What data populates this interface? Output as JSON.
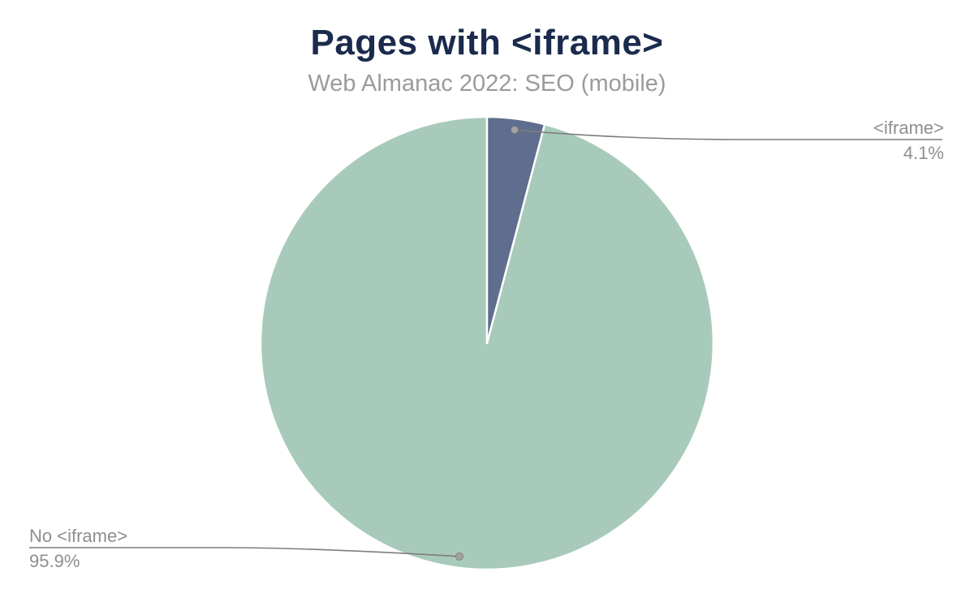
{
  "chart": {
    "title": "Pages with <iframe>",
    "subtitle": "Web Almanac 2022: SEO (mobile)"
  },
  "chart_data": {
    "type": "pie",
    "title": "Pages with <iframe>",
    "subtitle": "Web Almanac 2022: SEO (mobile)",
    "unit": "%",
    "direction": "clockwise",
    "start_angle_deg": 0,
    "legend_position": "none",
    "annotation_style": "leader-lines-with-dots",
    "slices": [
      {
        "label": "<iframe>",
        "value": 4.1,
        "display_value": "4.1%",
        "color": "#5f6e8e"
      },
      {
        "label": "No <iframe>",
        "value": 95.9,
        "display_value": "95.9%",
        "color": "#a8cabb"
      }
    ]
  },
  "colors": {
    "background": "#ffffff",
    "title": "#1b2b4d",
    "subtitle": "#9b9b9b",
    "label_text": "#8b908b",
    "leader_line": "#7d7d7d",
    "dot_fill": "#a2a2a2",
    "slice_border": "#ffffff"
  }
}
